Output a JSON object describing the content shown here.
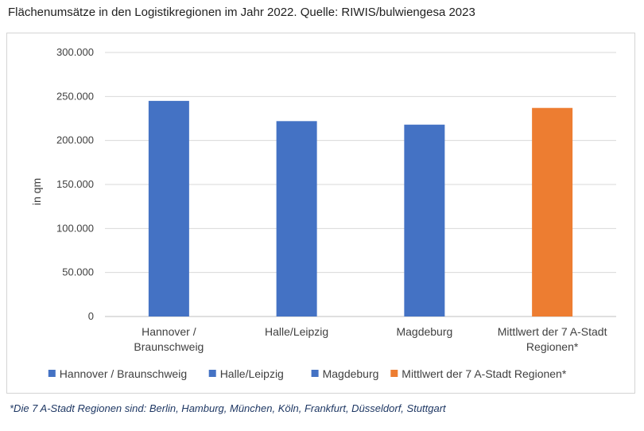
{
  "title": "Flächenumsätze in den Logistikregionen im Jahr 2022. Quelle: RIWIS/bulwiengesa 2023",
  "footnote": "*Die 7 A-Stadt Regionen sind: Berlin, Hamburg, München, Köln, Frankfurt, Düsseldorf, Stuttgart",
  "chart_data": {
    "type": "bar",
    "title": "",
    "xlabel": "",
    "ylabel": "in qm",
    "ylim": [
      0,
      300000
    ],
    "yticks": [
      0,
      50000,
      100000,
      150000,
      200000,
      250000,
      300000
    ],
    "ytick_labels": [
      "0",
      "50.000",
      "100.000",
      "150.000",
      "200.000",
      "250.000",
      "300.000"
    ],
    "grid": true,
    "legend_position": "bottom",
    "categories": [
      [
        "Hannover /",
        "Braunschweig"
      ],
      [
        "Halle/Leipzig"
      ],
      [
        "Magdeburg"
      ],
      [
        "Mittlwert der 7 A-Stadt",
        "Regionen*"
      ]
    ],
    "values": [
      245000,
      222000,
      218000,
      237000
    ],
    "colors": [
      "#4472c4",
      "#4472c4",
      "#4472c4",
      "#ed7d31"
    ],
    "legend": [
      {
        "label": "Hannover / Braunschweig",
        "color": "#4472c4"
      },
      {
        "label": "Halle/Leipzig",
        "color": "#4472c4"
      },
      {
        "label": "Magdeburg",
        "color": "#4472c4"
      },
      {
        "label": "Mittlwert der 7 A-Stadt Regionen*",
        "color": "#ed7d31"
      }
    ]
  }
}
